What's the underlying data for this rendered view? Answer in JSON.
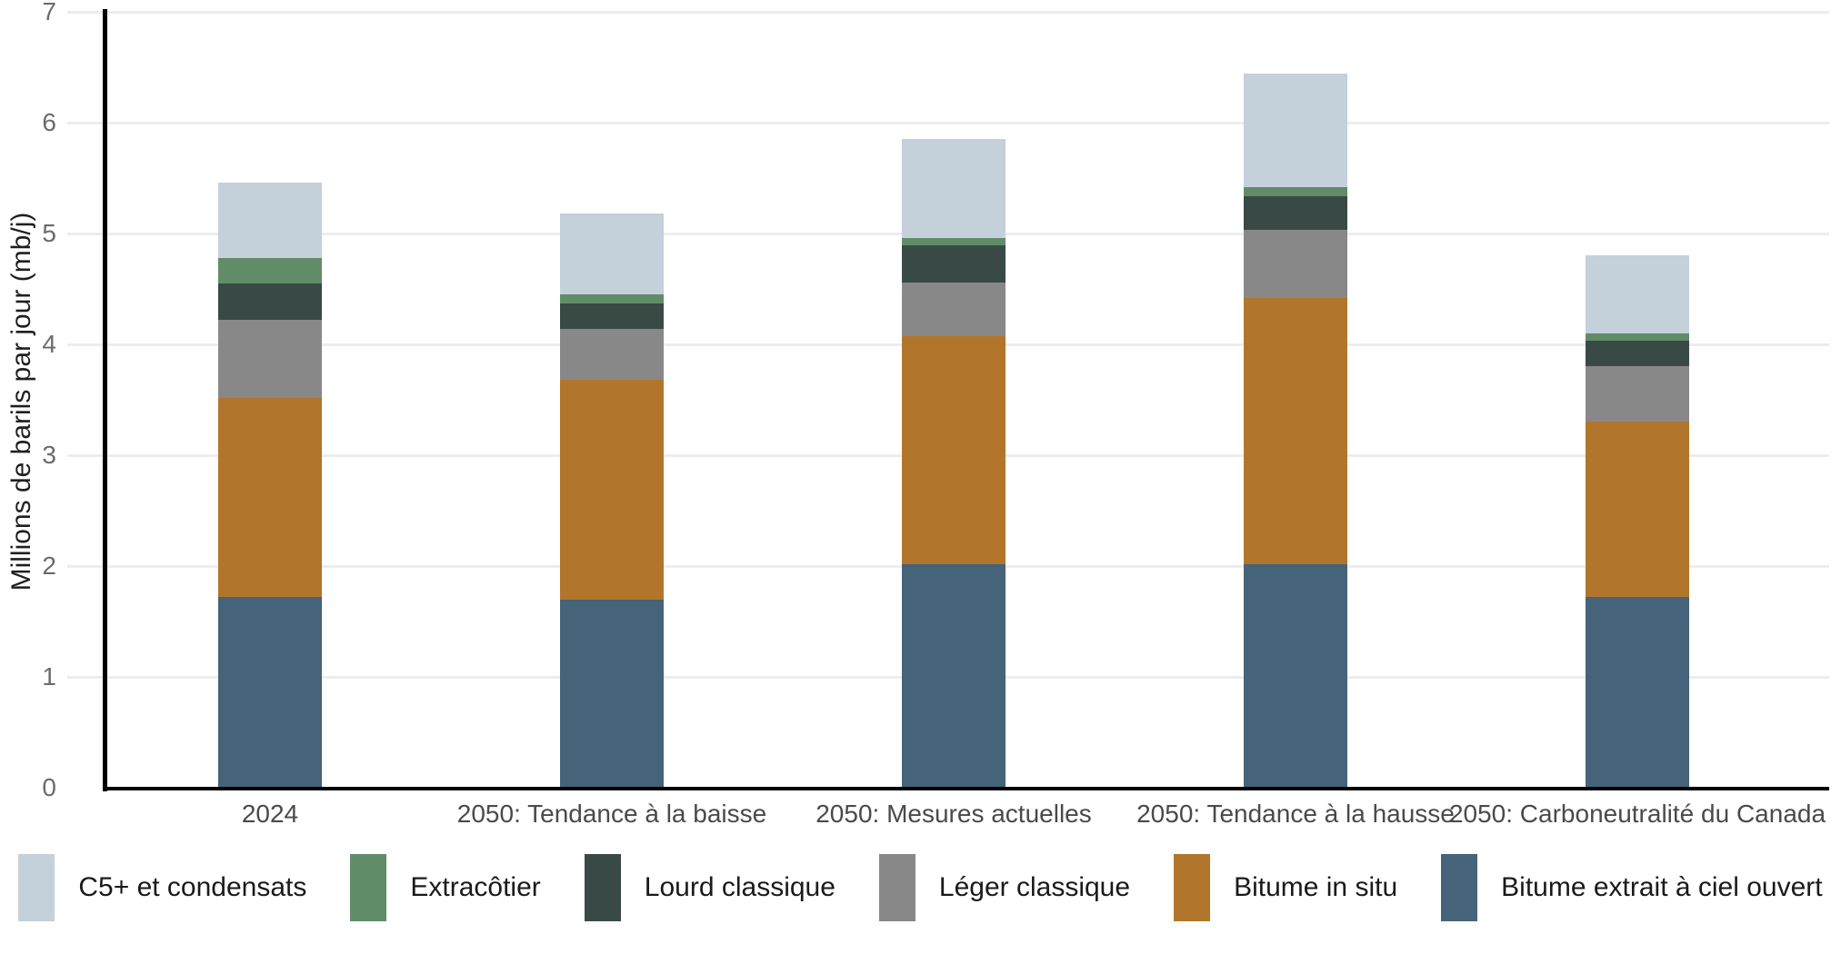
{
  "chart_data": {
    "type": "bar",
    "subtype": "stacked-vertical",
    "title": "",
    "ylabel": "Millions de barils par jour (mb/j)",
    "xlabel": "",
    "ylim": [
      0,
      7
    ],
    "yticks": [
      0,
      1,
      2,
      3,
      4,
      5,
      6,
      7
    ],
    "grid": "horizontal",
    "legend_position": "bottom",
    "categories": [
      "2024",
      "2050: Tendance à la baisse",
      "2050: Mesures actuelles",
      "2050: Tendance à la hausse",
      "2050: Carboneutralité du Canada"
    ],
    "series": [
      {
        "name": "Bitume extrait à ciel ouvert",
        "color": "#456379",
        "values": [
          1.72,
          1.7,
          2.02,
          2.02,
          1.72
        ]
      },
      {
        "name": "Bitume in situ",
        "color": "#b1762b",
        "values": [
          1.8,
          1.98,
          2.05,
          2.4,
          1.58
        ]
      },
      {
        "name": "Léger classique",
        "color": "#888888",
        "values": [
          0.7,
          0.46,
          0.49,
          0.61,
          0.5
        ]
      },
      {
        "name": "Lourd classique",
        "color": "#394a46",
        "values": [
          0.33,
          0.23,
          0.33,
          0.31,
          0.23
        ]
      },
      {
        "name": "Extracôtier",
        "color": "#618c68",
        "values": [
          0.23,
          0.08,
          0.07,
          0.08,
          0.07
        ]
      },
      {
        "name": "C5+ et condensats",
        "color": "#c4d0da",
        "values": [
          0.68,
          0.73,
          0.89,
          1.02,
          0.7
        ]
      }
    ],
    "stack_totals": [
      5.46,
      5.18,
      5.85,
      6.44,
      4.8
    ],
    "legend_order": [
      "C5+ et condensats",
      "Extracôtier",
      "Lourd classique",
      "Léger classique",
      "Bitume in situ",
      "Bitume extrait à ciel ouvert"
    ]
  }
}
